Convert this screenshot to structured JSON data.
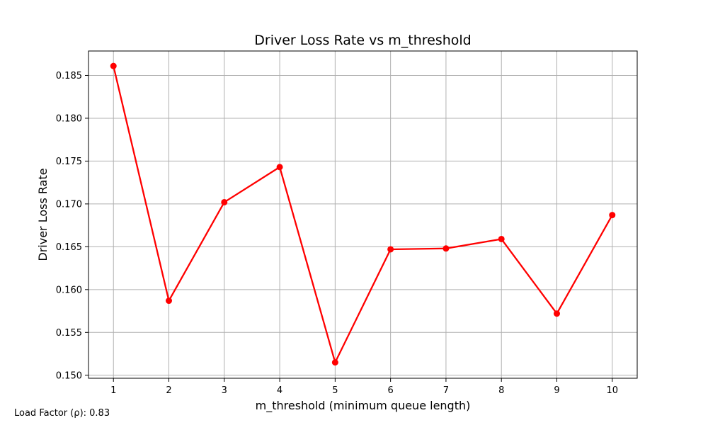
{
  "chart_data": {
    "type": "line",
    "title": "Driver Loss Rate vs m_threshold",
    "xlabel": "m_threshold (minimum queue length)",
    "ylabel": "Driver Loss Rate",
    "x": [
      1,
      2,
      3,
      4,
      5,
      6,
      7,
      8,
      9,
      10
    ],
    "series": [
      {
        "values": [
          0.1861,
          0.1587,
          0.1702,
          0.1743,
          0.1515,
          0.1647,
          0.1648,
          0.1659,
          0.1572,
          0.1687
        ],
        "color": "#ff0000",
        "marker": "circle"
      }
    ],
    "xlim": [
      0.55,
      10.45
    ],
    "ylim": [
      0.14965,
      0.18785
    ],
    "xticks": [
      1,
      2,
      3,
      4,
      5,
      6,
      7,
      8,
      9,
      10
    ],
    "xtick_labels": [
      "1",
      "2",
      "3",
      "4",
      "5",
      "6",
      "7",
      "8",
      "9",
      "10"
    ],
    "yticks": [
      0.15,
      0.155,
      0.16,
      0.165,
      0.17,
      0.175,
      0.18,
      0.185
    ],
    "ytick_labels": [
      "0.150",
      "0.155",
      "0.160",
      "0.165",
      "0.170",
      "0.175",
      "0.180",
      "0.185"
    ],
    "grid": true,
    "annotation": "Load Factor (ρ): 0.83"
  }
}
